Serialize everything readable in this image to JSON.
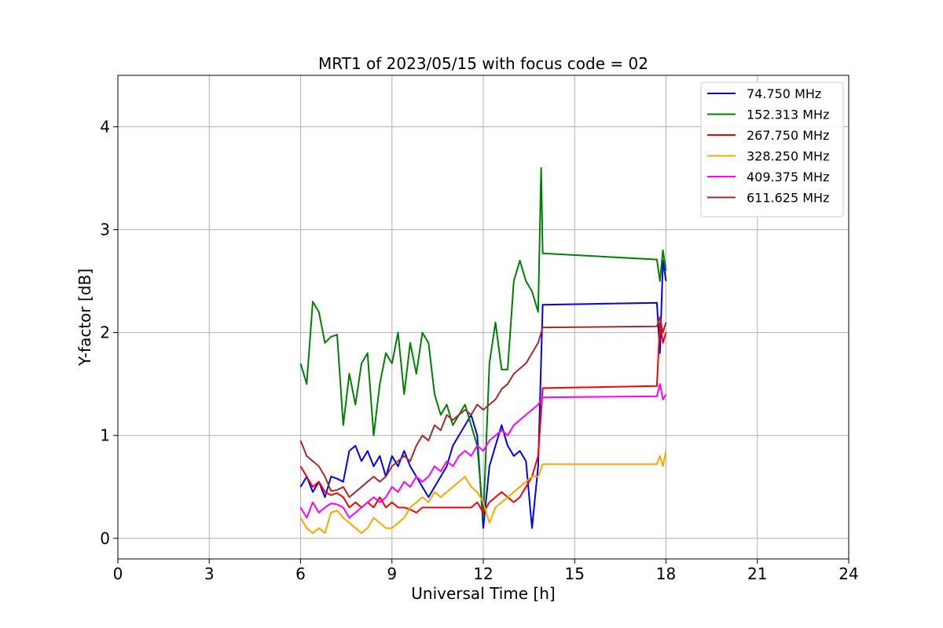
{
  "chart_data": {
    "type": "line",
    "title": "MRT1 of 2023/05/15 with focus code = 02",
    "xlabel": "Universal Time [h]",
    "ylabel": "Y-factor [dB]",
    "xlim": [
      0,
      24
    ],
    "ylim": [
      -0.2,
      4.5
    ],
    "xticks": [
      0,
      3,
      6,
      9,
      12,
      15,
      18,
      21,
      24
    ],
    "yticks": [
      0,
      1,
      2,
      3,
      4
    ],
    "grid": true,
    "legend_position": "top-right",
    "series": [
      {
        "name": " 74.750 MHz",
        "color": "#0000ff",
        "x": [
          6.0,
          6.2,
          6.4,
          6.6,
          6.8,
          7.0,
          7.2,
          7.4,
          7.6,
          7.8,
          8.0,
          8.2,
          8.4,
          8.6,
          8.8,
          9.0,
          9.2,
          9.4,
          9.6,
          9.8,
          10.0,
          10.2,
          10.4,
          10.6,
          10.8,
          11.0,
          11.2,
          11.4,
          11.6,
          11.8,
          12.0,
          12.2,
          12.4,
          12.6,
          12.8,
          13.0,
          13.2,
          13.4,
          13.6,
          13.8,
          13.95,
          17.7,
          17.8,
          17.9,
          18.0
        ],
        "y": [
          0.5,
          0.6,
          0.45,
          0.55,
          0.4,
          0.6,
          0.58,
          0.55,
          0.85,
          0.9,
          0.75,
          0.85,
          0.7,
          0.8,
          0.6,
          0.8,
          0.7,
          0.85,
          0.7,
          0.6,
          0.5,
          0.4,
          0.5,
          0.6,
          0.7,
          0.9,
          1.0,
          1.1,
          1.2,
          1.0,
          0.1,
          0.7,
          0.9,
          1.1,
          0.9,
          0.8,
          0.85,
          0.75,
          0.1,
          0.7,
          2.27,
          2.29,
          1.8,
          2.7,
          2.5
        ]
      },
      {
        "name": "152.313 MHz",
        "color": "#008000",
        "x": [
          6.0,
          6.2,
          6.4,
          6.6,
          6.8,
          7.0,
          7.2,
          7.4,
          7.6,
          7.8,
          8.0,
          8.2,
          8.4,
          8.6,
          8.8,
          9.0,
          9.2,
          9.4,
          9.6,
          9.8,
          10.0,
          10.2,
          10.4,
          10.6,
          10.8,
          11.0,
          11.2,
          11.4,
          11.6,
          11.8,
          12.0,
          12.2,
          12.4,
          12.6,
          12.8,
          13.0,
          13.2,
          13.4,
          13.6,
          13.8,
          13.9,
          13.95,
          17.7,
          17.8,
          17.9,
          18.0
        ],
        "y": [
          1.7,
          1.5,
          2.3,
          2.2,
          1.9,
          1.96,
          1.98,
          1.1,
          1.6,
          1.3,
          1.7,
          1.8,
          1.0,
          1.5,
          1.8,
          1.7,
          2.0,
          1.4,
          1.9,
          1.6,
          2.0,
          1.9,
          1.4,
          1.2,
          1.3,
          1.1,
          1.2,
          1.3,
          1.1,
          0.9,
          0.2,
          1.7,
          2.1,
          1.64,
          1.64,
          2.5,
          2.7,
          2.5,
          2.4,
          2.2,
          3.6,
          2.77,
          2.71,
          2.5,
          2.8,
          2.6
        ]
      },
      {
        "name": "267.750 MHz",
        "color": "#ff0000",
        "x": [
          6.0,
          6.2,
          6.4,
          6.6,
          6.8,
          7.0,
          7.2,
          7.4,
          7.6,
          7.8,
          8.0,
          8.2,
          8.4,
          8.6,
          8.8,
          9.0,
          9.2,
          9.4,
          9.6,
          9.8,
          10.0,
          10.2,
          10.4,
          10.6,
          10.8,
          11.0,
          11.2,
          11.4,
          11.6,
          11.8,
          12.0,
          12.2,
          12.4,
          12.6,
          12.8,
          13.0,
          13.2,
          13.4,
          13.6,
          13.8,
          13.95,
          17.7,
          17.8,
          17.9,
          18.0
        ],
        "y": [
          0.7,
          0.6,
          0.5,
          0.55,
          0.45,
          0.42,
          0.44,
          0.4,
          0.3,
          0.35,
          0.3,
          0.35,
          0.3,
          0.4,
          0.3,
          0.35,
          0.3,
          0.3,
          0.28,
          0.25,
          0.3,
          0.3,
          0.3,
          0.3,
          0.3,
          0.3,
          0.3,
          0.3,
          0.3,
          0.35,
          0.25,
          0.35,
          0.4,
          0.45,
          0.4,
          0.35,
          0.4,
          0.5,
          0.6,
          0.8,
          1.46,
          1.48,
          2.1,
          1.9,
          2.0
        ]
      },
      {
        "name": "328.250 MHz",
        "color": "#ffa500",
        "x": [
          6.0,
          6.2,
          6.4,
          6.6,
          6.8,
          7.0,
          7.2,
          7.4,
          7.6,
          7.8,
          8.0,
          8.2,
          8.4,
          8.6,
          8.8,
          9.0,
          9.2,
          9.4,
          9.6,
          9.8,
          10.0,
          10.2,
          10.4,
          10.6,
          10.8,
          11.0,
          11.2,
          11.4,
          11.6,
          11.8,
          12.0,
          12.2,
          12.4,
          12.6,
          12.8,
          13.0,
          13.2,
          13.4,
          13.6,
          13.8,
          13.95,
          17.7,
          17.8,
          17.9,
          18.0
        ],
        "y": [
          0.2,
          0.1,
          0.05,
          0.1,
          0.05,
          0.25,
          0.27,
          0.2,
          0.15,
          0.1,
          0.05,
          0.1,
          0.2,
          0.15,
          0.1,
          0.1,
          0.15,
          0.2,
          0.3,
          0.35,
          0.4,
          0.35,
          0.45,
          0.4,
          0.45,
          0.5,
          0.55,
          0.6,
          0.5,
          0.45,
          0.35,
          0.15,
          0.3,
          0.35,
          0.4,
          0.45,
          0.5,
          0.55,
          0.6,
          0.6,
          0.72,
          0.72,
          0.8,
          0.7,
          0.85
        ]
      },
      {
        "name": "409.375 MHz",
        "color": "#ff00ff",
        "x": [
          6.0,
          6.2,
          6.4,
          6.6,
          6.8,
          7.0,
          7.2,
          7.4,
          7.6,
          7.8,
          8.0,
          8.2,
          8.4,
          8.6,
          8.8,
          9.0,
          9.2,
          9.4,
          9.6,
          9.8,
          10.0,
          10.2,
          10.4,
          10.6,
          10.8,
          11.0,
          11.2,
          11.4,
          11.6,
          11.8,
          12.0,
          12.2,
          12.4,
          12.6,
          12.8,
          13.0,
          13.2,
          13.4,
          13.6,
          13.8,
          13.95,
          17.7,
          17.8,
          17.9,
          18.0
        ],
        "y": [
          0.3,
          0.2,
          0.35,
          0.25,
          0.3,
          0.34,
          0.33,
          0.3,
          0.2,
          0.25,
          0.3,
          0.35,
          0.4,
          0.35,
          0.4,
          0.5,
          0.45,
          0.55,
          0.5,
          0.6,
          0.55,
          0.6,
          0.7,
          0.65,
          0.75,
          0.7,
          0.8,
          0.85,
          0.8,
          0.9,
          0.85,
          0.95,
          1.0,
          1.05,
          1.0,
          1.1,
          1.15,
          1.2,
          1.25,
          1.3,
          1.37,
          1.38,
          1.5,
          1.35,
          1.4
        ]
      },
      {
        "name": "611.625 MHz",
        "color": "#a52a2a",
        "x": [
          6.0,
          6.2,
          6.4,
          6.6,
          6.8,
          7.0,
          7.2,
          7.4,
          7.6,
          7.8,
          8.0,
          8.2,
          8.4,
          8.6,
          8.8,
          9.0,
          9.2,
          9.4,
          9.6,
          9.8,
          10.0,
          10.2,
          10.4,
          10.6,
          10.8,
          11.0,
          11.2,
          11.4,
          11.6,
          11.8,
          12.0,
          12.2,
          12.4,
          12.6,
          12.8,
          13.0,
          13.2,
          13.4,
          13.6,
          13.8,
          13.95,
          17.7,
          17.8,
          17.9,
          18.0
        ],
        "y": [
          0.95,
          0.8,
          0.75,
          0.7,
          0.6,
          0.46,
          0.47,
          0.5,
          0.4,
          0.45,
          0.5,
          0.55,
          0.6,
          0.55,
          0.6,
          0.7,
          0.75,
          0.8,
          0.75,
          0.9,
          1.0,
          0.95,
          1.1,
          1.05,
          1.2,
          1.15,
          1.2,
          1.25,
          1.2,
          1.3,
          1.25,
          1.3,
          1.35,
          1.45,
          1.5,
          1.6,
          1.65,
          1.7,
          1.8,
          1.9,
          2.05,
          2.06,
          2.15,
          2.0,
          2.1
        ]
      }
    ]
  }
}
